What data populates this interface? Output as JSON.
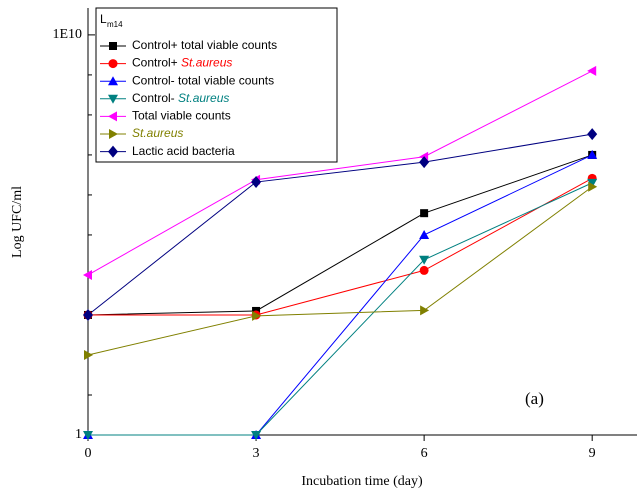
{
  "chart_data": {
    "type": "line",
    "x_label": "Incubation time (day)",
    "y_label": "Log UFC/ml",
    "annotation": "(a)",
    "legend_title": "L",
    "legend_title_sub": "m14",
    "legend": "upper left",
    "log_y": true,
    "xlim": [
      0,
      9.8
    ],
    "xticks": [
      0,
      3,
      6,
      9
    ],
    "ylim": [
      1,
      47000000000
    ],
    "yticks": [
      1,
      {
        "value": 10000000000,
        "label": "1E10"
      }
    ],
    "minor_yticks": [
      10,
      100,
      1000,
      10000,
      100000,
      1000000,
      10000000,
      100000000,
      1000000000
    ],
    "x": [
      0,
      3,
      6,
      9
    ],
    "series": [
      {
        "name": "Control+ total viable counts",
        "color": "#000000",
        "marker": "square",
        "values": [
          1000,
          1260,
          350000,
          10000000
        ]
      },
      {
        "name": "Control+ St.aureus",
        "color": "#ff0000",
        "marker": "circle",
        "italic_last": true,
        "values": [
          1000,
          1000,
          13000,
          2600000
        ]
      },
      {
        "name": "Control- total viable counts",
        "color": "#0000ff",
        "marker": "triangle-up",
        "values": [
          1,
          1,
          100000,
          10000000
        ]
      },
      {
        "name": "Control- St.aureus",
        "color": "#008080",
        "marker": "triangle-down",
        "italic_last": true,
        "values": [
          1,
          1,
          24000,
          2000000
        ]
      },
      {
        "name": "Total viable counts",
        "color": "#ff00ff",
        "marker": "triangle-left",
        "values": [
          10000,
          2400000,
          9000000,
          1260000000
        ]
      },
      {
        "name": "St.aureus",
        "color": "#808000",
        "marker": "triangle-right",
        "italic_last": true,
        "values": [
          100,
          950,
          1300,
          1600000
        ]
      },
      {
        "name": "Lactic acid bacteria",
        "color": "#000080",
        "marker": "diamond",
        "values": [
          1000,
          2100000,
          6600000,
          33000000
        ]
      }
    ]
  }
}
